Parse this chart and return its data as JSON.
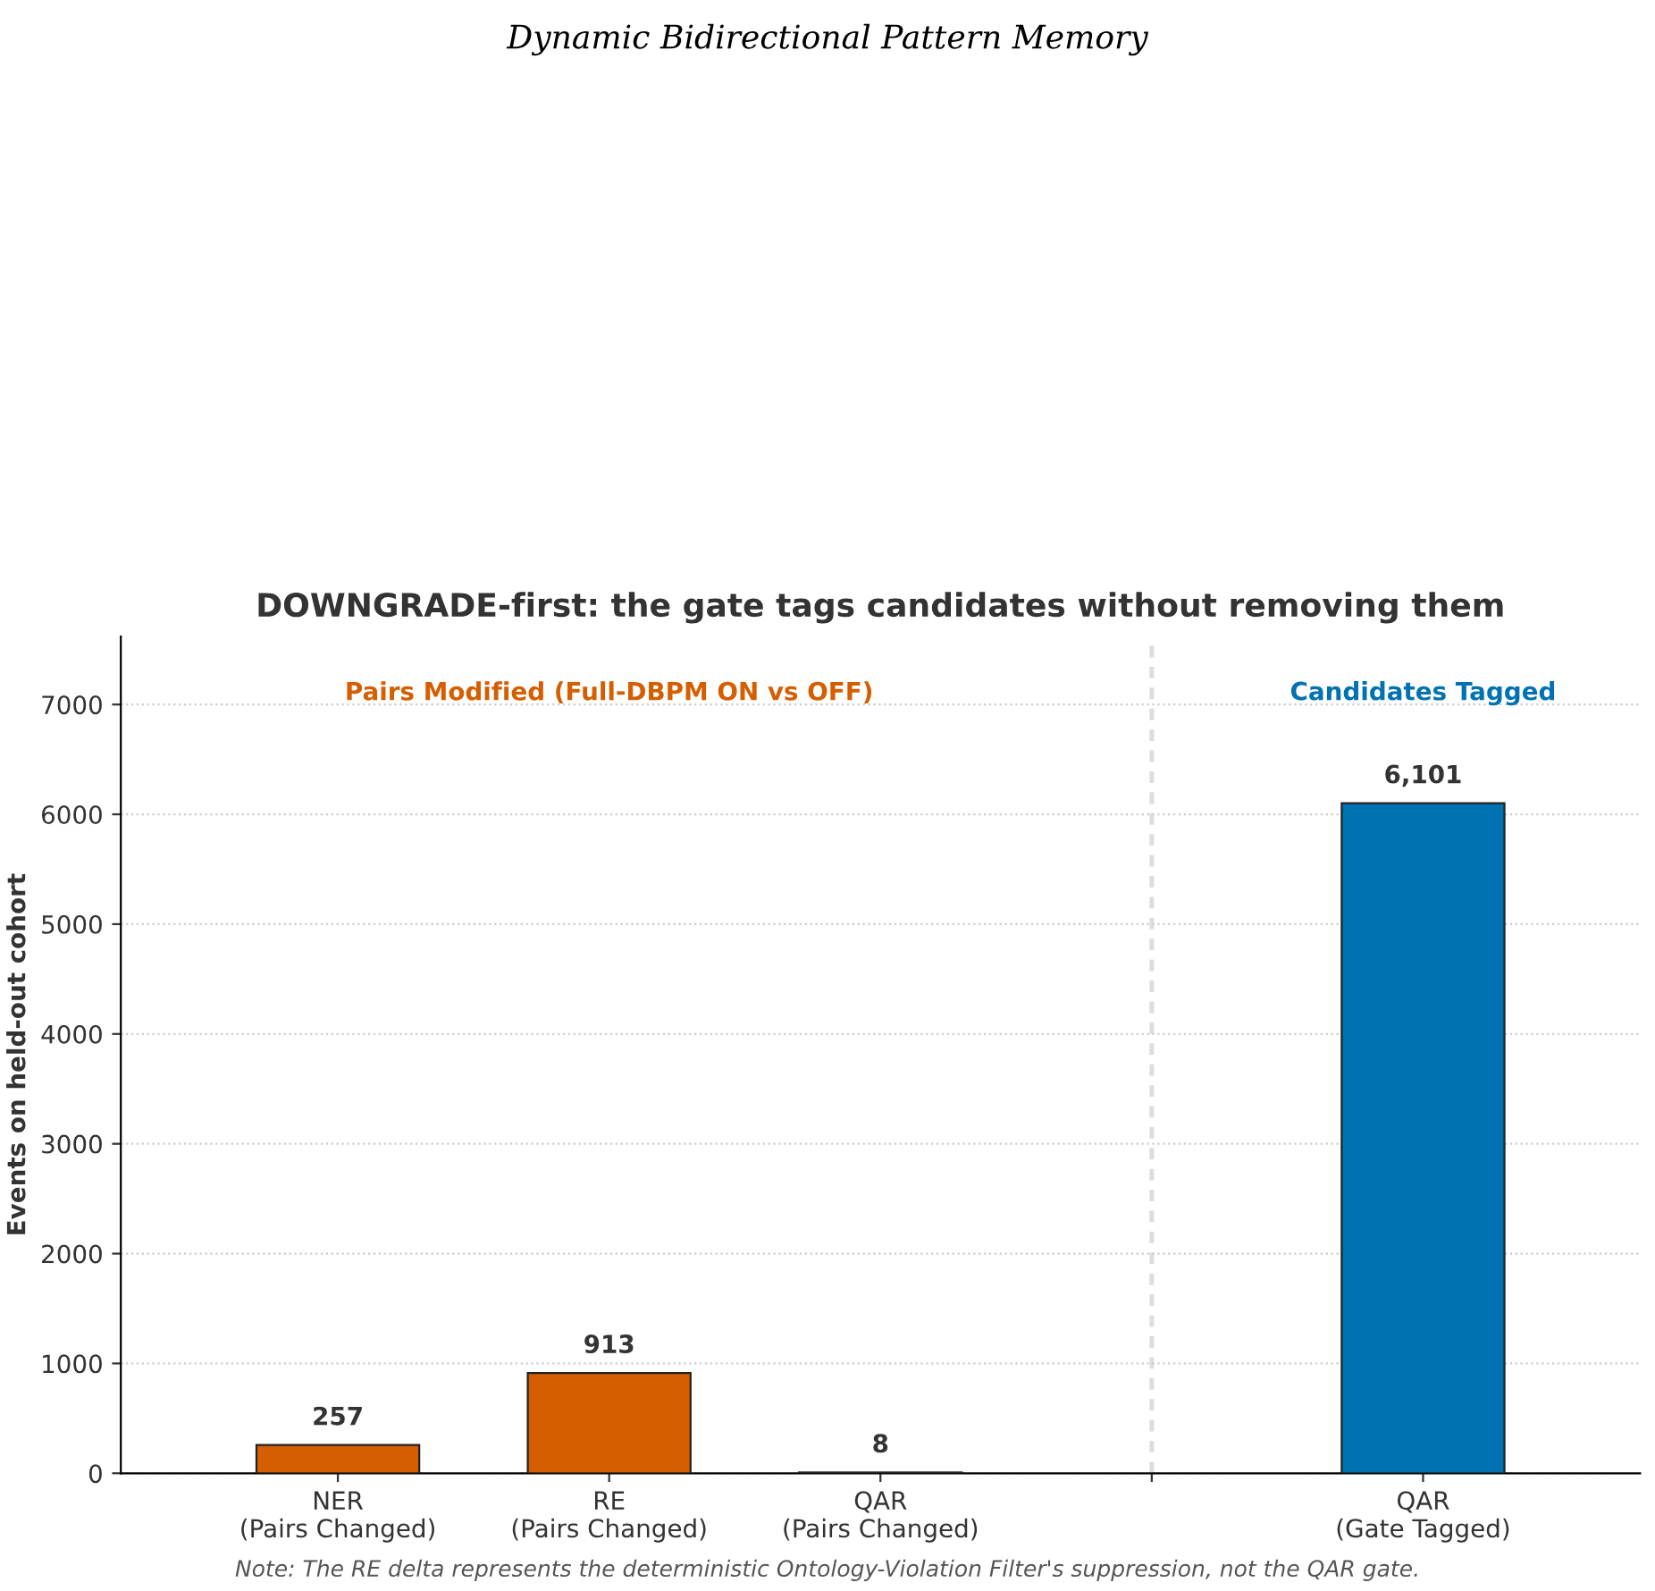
{
  "chart_data": {
    "type": "bar",
    "title": "Dynamic Bidirectional Pattern Memory",
    "subtitle": "DOWNGRADE-first: the gate tags candidates without removing them",
    "ylabel": "Events on held-out cohort",
    "categories": [
      "NER\n(Pairs Changed)",
      "RE\n(Pairs Changed)",
      "QAR\n(Pairs Changed)",
      null,
      "QAR\n(Gate Tagged)"
    ],
    "values": [
      257,
      913,
      8,
      null,
      6101
    ],
    "colors": [
      "#d55e00",
      "#d55e00",
      "#d55e00",
      null,
      "#0072b2"
    ],
    "value_labels": [
      "257",
      "913",
      "8",
      null,
      "6,101"
    ],
    "ylim": [
      0,
      7620
    ],
    "yticks": [
      0,
      1000,
      2000,
      3000,
      4000,
      5000,
      6000,
      7000
    ],
    "grid": "y",
    "annotations": [
      "Pairs Modified (Full-DBPM ON vs OFF)",
      "Candidates Tagged",
      "Note: The RE delta represents the deterministic Ontology-Violation Filter's suppression, not the QAR gate."
    ]
  }
}
